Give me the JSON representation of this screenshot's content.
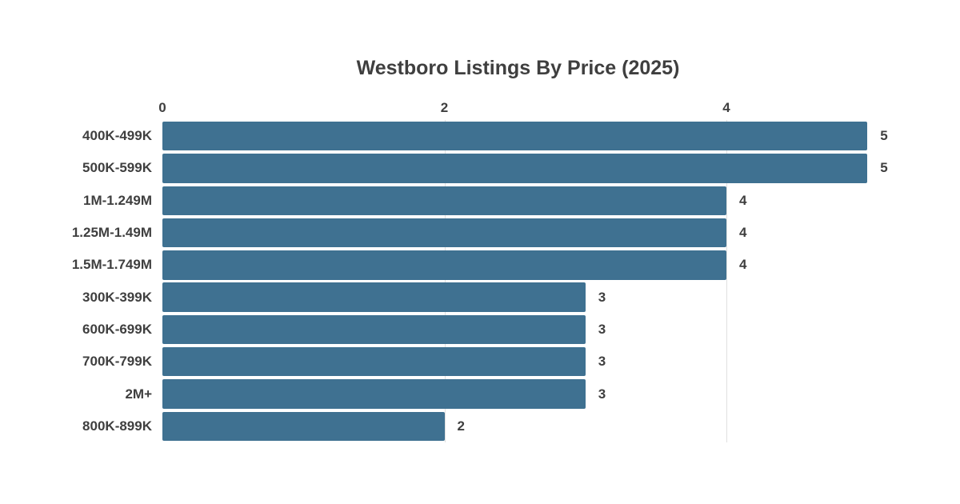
{
  "chart_data": {
    "type": "bar",
    "orientation": "horizontal",
    "title": "Westboro Listings By Price (2025)",
    "xlabel": "",
    "ylabel": "",
    "categories": [
      "400K-499K",
      "500K-599K",
      "1M-1.249M",
      "1.25M-1.49M",
      "1.5M-1.749M",
      "300K-399K",
      "600K-699K",
      "700K-799K",
      "2M+",
      "800K-899K"
    ],
    "values": [
      5,
      5,
      4,
      4,
      4,
      3,
      3,
      3,
      3,
      2
    ],
    "xticks": [
      0,
      2,
      4
    ],
    "xlim": [
      0,
      5.05
    ],
    "grid": "vertical-behind-bars",
    "tick_position": "top",
    "value_labels_shown": true
  },
  "colors": {
    "bar": "#3f7191",
    "text": "#3f3f3f",
    "gridline": "#e0e0e0",
    "background": "#ffffff"
  }
}
